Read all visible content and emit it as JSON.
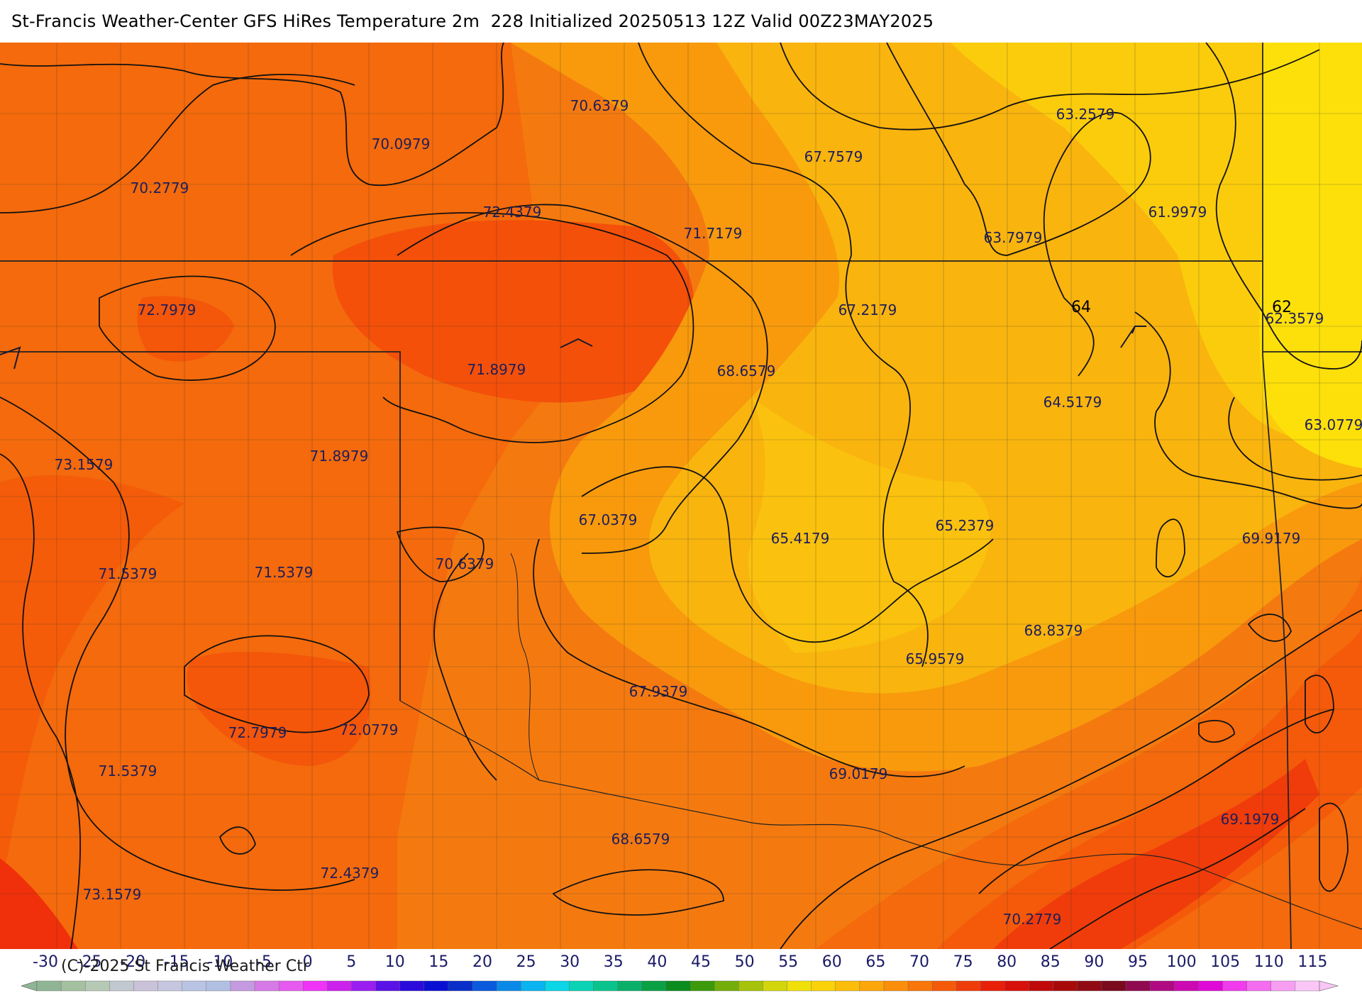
{
  "title": "St-Francis Weather-Center GFS HiRes Temperature 2m  228 Initialized 20250513 12Z Valid 00Z23MAY2025",
  "copyright": "(C)-2025 St Francis Weather Ctr",
  "value_labels": [
    "70.6379",
    "70.0979",
    "70.2779",
    "72.4379",
    "67.7579",
    "63.2579",
    "61.9979",
    "71.7179",
    "63.7979",
    "72.7979",
    "67.2179",
    "71.8979",
    "68.6579",
    "62.3579",
    "64.5179",
    "63.0779",
    "73.1579",
    "71.8979",
    "67.0379",
    "65.4179",
    "65.2379",
    "69.9179",
    "70.6379",
    "71.5379",
    "71.5379",
    "68.8379",
    "65.9579",
    "67.9379",
    "72.7979",
    "72.0779",
    "71.5379",
    "69.0179",
    "69.1979",
    "68.6579",
    "73.1579",
    "72.4379",
    "70.2779"
  ],
  "contour_labels": [
    "64",
    "62"
  ],
  "colorbar": {
    "tick_labels": [
      "-30",
      "-25",
      "-20",
      "-15",
      "-10",
      "-5",
      "0",
      "5",
      "10",
      "15",
      "20",
      "25",
      "30",
      "35",
      "40",
      "45",
      "50",
      "55",
      "60",
      "65",
      "70",
      "75",
      "80",
      "85",
      "90",
      "95",
      "100",
      "105",
      "110",
      "115"
    ],
    "colors": [
      "#8fb595",
      "#a4c0a0",
      "#b6c9b4",
      "#c2c8cf",
      "#c9c2d8",
      "#c6c6df",
      "#b9c4e4",
      "#b0bfe2",
      "#c49be0",
      "#d77ae8",
      "#e65af0",
      "#f034f6",
      "#cc22ee",
      "#9b1ef0",
      "#5a12e6",
      "#2a0bdc",
      "#0a10d2",
      "#0a2ec8",
      "#0a5ade",
      "#0a8ae8",
      "#0ab4f0",
      "#0ad6e6",
      "#0ad2b4",
      "#0ac48c",
      "#0ab06a",
      "#0aa044",
      "#0a8c1e",
      "#3c9a0a",
      "#74ae0a",
      "#a6c20a",
      "#d2d60a",
      "#f0e00a",
      "#fad20a",
      "#fcbd0a",
      "#fca60a",
      "#fb8e0a",
      "#f8760a",
      "#f45a0a",
      "#f03c0a",
      "#e8200a",
      "#d8100a",
      "#c00a0a",
      "#a80a0a",
      "#900a14",
      "#7a0a1e",
      "#900a50",
      "#b00a82",
      "#cc0ab2",
      "#e00ad8",
      "#f03cec",
      "#f46cf0",
      "#f79ef2",
      "#f9c6f6"
    ]
  }
}
